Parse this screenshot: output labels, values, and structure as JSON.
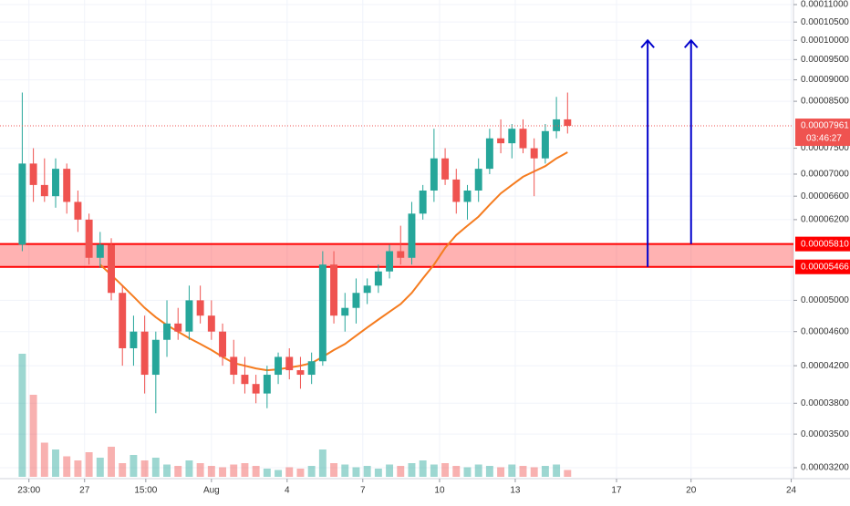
{
  "chart_data": {
    "type": "candlestick",
    "log_scale": true,
    "grid": true,
    "up_color": "#26a69a",
    "down_color": "#ef5350",
    "ylim": [
      3.108e-05,
      0.00011135
    ],
    "xlim": [
      -2,
      69.3
    ],
    "yticks": [
      {
        "value": 0.00011,
        "label": "0.00011000"
      },
      {
        "value": 0.000105,
        "label": "0.00010500"
      },
      {
        "value": 0.0001,
        "label": "0.00010000"
      },
      {
        "value": 9.5e-05,
        "label": "0.00009500"
      },
      {
        "value": 9e-05,
        "label": "0.00009000"
      },
      {
        "value": 8.5e-05,
        "label": "0.00008500"
      },
      {
        "value": 7.5e-05,
        "label": "0.00007500"
      },
      {
        "value": 7e-05,
        "label": "0.00007000"
      },
      {
        "value": 6.6e-05,
        "label": "0.00006600"
      },
      {
        "value": 6.2e-05,
        "label": "0.00006200"
      },
      {
        "value": 5e-05,
        "label": "0.00005000"
      },
      {
        "value": 4.6e-05,
        "label": "0.00004600"
      },
      {
        "value": 4.2e-05,
        "label": "0.00004200"
      },
      {
        "value": 3.8e-05,
        "label": "0.00003800"
      },
      {
        "value": 3.5e-05,
        "label": "0.00003500"
      },
      {
        "value": 3.2e-05,
        "label": "0.00003200"
      }
    ],
    "xticks": [
      {
        "value": 0.6,
        "label": "23:00"
      },
      {
        "value": 5.6,
        "label": "27"
      },
      {
        "value": 11.1,
        "label": "15:00"
      },
      {
        "value": 17,
        "label": "Aug"
      },
      {
        "value": 23.8,
        "label": "4"
      },
      {
        "value": 30.6,
        "label": "7"
      },
      {
        "value": 37.5,
        "label": "10"
      },
      {
        "value": 44.3,
        "label": "13"
      },
      {
        "value": 53.4,
        "label": "17"
      },
      {
        "value": 60.1,
        "label": "20"
      },
      {
        "value": 69.1,
        "label": "24"
      }
    ],
    "open": [
      5.8e-05,
      7.2e-05,
      6.8e-05,
      6.6e-05,
      7.1e-05,
      6.5e-05,
      6.2e-05,
      5.6e-05,
      5.8e-05,
      5.1e-05,
      4.4e-05,
      4.6e-05,
      4.1e-05,
      4.5e-05,
      4.7e-05,
      4.6e-05,
      5e-05,
      4.8e-05,
      4.6e-05,
      4.3e-05,
      4.1e-05,
      4e-05,
      3.9e-05,
      4.1e-05,
      4.3e-05,
      4.15e-05,
      4.1e-05,
      4.25e-05,
      5.5e-05,
      4.8e-05,
      4.9e-05,
      5.1e-05,
      5.2e-05,
      5.4e-05,
      5.7e-05,
      5.6e-05,
      6.3e-05,
      6.7e-05,
      7.3e-05,
      6.9e-05,
      6.5e-05,
      6.7e-05,
      7.1e-05,
      7.7e-05,
      7.6e-05,
      7.9e-05,
      7.5e-05,
      7.3e-05,
      7.85e-05,
      8.1e-05
    ],
    "high": [
      8.7e-05,
      7.5e-05,
      7.3e-05,
      7.3e-05,
      7.2e-05,
      6.7e-05,
      6.3e-05,
      6e-05,
      5.9e-05,
      5.2e-05,
      4.8e-05,
      4.8e-05,
      4.6e-05,
      5e-05,
      4.9e-05,
      5.2e-05,
      5.2e-05,
      5e-05,
      4.7e-05,
      4.5e-05,
      4.3e-05,
      4.1e-05,
      4.2e-05,
      4.35e-05,
      4.4e-05,
      4.3e-05,
      4.35e-05,
      5.7e-05,
      5.7e-05,
      5.1e-05,
      5.3e-05,
      5.3e-05,
      5.5e-05,
      5.8e-05,
      6.1e-05,
      6.5e-05,
      6.8e-05,
      7.9e-05,
      7.5e-05,
      7.1e-05,
      6.8e-05,
      7.3e-05,
      7.9e-05,
      8.1e-05,
      8e-05,
      8.1e-05,
      7.7e-05,
      8e-05,
      8.6e-05,
      8.7e-05
    ],
    "low": [
      5.7e-05,
      6.5e-05,
      6.5e-05,
      6.4e-05,
      6.3e-05,
      6e-05,
      5.5e-05,
      5.45e-05,
      5e-05,
      4.2e-05,
      4.2e-05,
      3.9e-05,
      3.7e-05,
      4.3e-05,
      4.5e-05,
      4.5e-05,
      4.7e-05,
      4.5e-05,
      4.2e-05,
      4e-05,
      3.9e-05,
      3.8e-05,
      3.75e-05,
      4e-05,
      4.05e-05,
      3.95e-05,
      4e-05,
      4.2e-05,
      4.7e-05,
      4.6e-05,
      4.7e-05,
      4.95e-05,
      5.1e-05,
      5.3e-05,
      5.5e-05,
      5.5e-05,
      6.2e-05,
      6.5e-05,
      6.8e-05,
      6.3e-05,
      6.2e-05,
      6.5e-05,
      7e-05,
      7.4e-05,
      7.3e-05,
      7.4e-05,
      6.6e-05,
      7.2e-05,
      7.7e-05,
      7.8e-05
    ],
    "close": [
      7.2e-05,
      6.8e-05,
      6.6e-05,
      7.1e-05,
      6.5e-05,
      6.2e-05,
      5.6e-05,
      5.8e-05,
      5.1e-05,
      4.4e-05,
      4.6e-05,
      4.1e-05,
      4.5e-05,
      4.7e-05,
      4.6e-05,
      5e-05,
      4.8e-05,
      4.6e-05,
      4.3e-05,
      4.1e-05,
      4e-05,
      3.9e-05,
      4.1e-05,
      4.3e-05,
      4.15e-05,
      4.1e-05,
      4.25e-05,
      5.5e-05,
      4.8e-05,
      4.9e-05,
      5.1e-05,
      5.2e-05,
      5.4e-05,
      5.7e-05,
      5.6e-05,
      6.3e-05,
      6.7e-05,
      7.3e-05,
      6.9e-05,
      6.5e-05,
      6.7e-05,
      7.1e-05,
      7.7e-05,
      7.6e-05,
      7.9e-05,
      7.5e-05,
      7.3e-05,
      7.85e-05,
      8.1e-05,
      7.961e-05
    ],
    "volume": [
      90,
      60,
      25,
      20,
      15,
      12,
      18,
      14,
      22,
      10,
      16,
      12,
      14,
      9,
      8,
      12,
      10,
      8,
      7,
      9,
      10,
      8,
      6,
      5,
      7,
      6,
      8,
      20,
      10,
      9,
      7,
      8,
      6,
      9,
      8,
      10,
      12,
      9,
      10,
      8,
      7,
      9,
      8,
      7,
      9,
      8,
      7,
      8,
      9,
      5
    ],
    "ma": {
      "color": "#f57c1f",
      "values": [
        null,
        null,
        null,
        null,
        null,
        null,
        null,
        5.5e-05,
        5.35e-05,
        5.2e-05,
        5.05e-05,
        4.9e-05,
        4.78e-05,
        4.68e-05,
        4.6e-05,
        4.52e-05,
        4.45e-05,
        4.38e-05,
        4.3e-05,
        4.23e-05,
        4.2e-05,
        4.17e-05,
        4.15e-05,
        4.16e-05,
        4.18e-05,
        4.2e-05,
        4.23e-05,
        4.3e-05,
        4.38e-05,
        4.45e-05,
        4.55e-05,
        4.65e-05,
        4.75e-05,
        4.85e-05,
        4.95e-05,
        5.1e-05,
        5.3e-05,
        5.5e-05,
        5.75e-05,
        5.95e-05,
        6.1e-05,
        6.25e-05,
        6.45e-05,
        6.65e-05,
        6.8e-05,
        6.95e-05,
        7.05e-05,
        7.15e-05,
        7.3e-05,
        7.42e-05
      ]
    },
    "zone": [
      {
        "value": 5.81e-05,
        "label": "0.00005810"
      },
      {
        "value": 5.466e-05,
        "label": "0.00005466"
      }
    ],
    "zone_color": "#ff0000",
    "arrow_color": "#0000cc",
    "arrows": [
      {
        "x": 56.2,
        "from": 5.466e-05,
        "to": 0.0001
      },
      {
        "x": 60.1,
        "from": 5.81e-05,
        "to": 0.0001
      }
    ],
    "last_price": {
      "value": 7.961e-05,
      "label": "0.00007961"
    },
    "countdown": "03:46:27"
  }
}
